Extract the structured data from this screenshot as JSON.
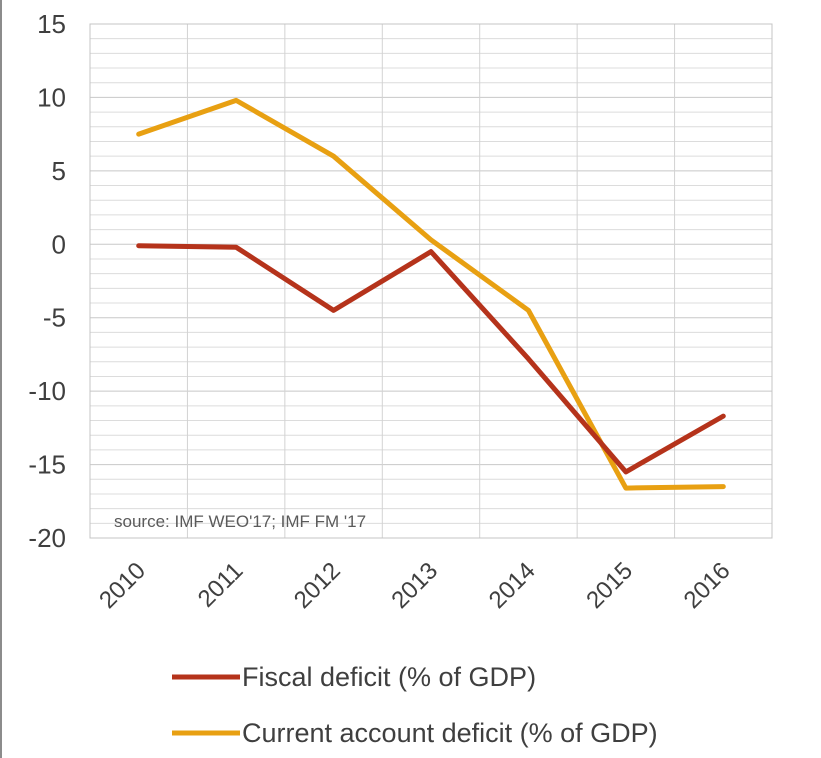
{
  "chart_data": {
    "type": "line",
    "x": [
      "2010",
      "2011",
      "2012",
      "2013",
      "2014",
      "2015",
      "2016"
    ],
    "series": [
      {
        "name": "Fiscal deficit (% of GDP)",
        "color": "#b5331b",
        "values": [
          -0.1,
          -0.2,
          -4.5,
          -0.5,
          -7.8,
          -15.5,
          -11.7
        ]
      },
      {
        "name": "Current account deficit (% of GDP)",
        "color": "#e8a012",
        "values": [
          7.5,
          9.8,
          6.0,
          0.3,
          -4.5,
          -16.6,
          -16.5
        ]
      }
    ],
    "ylim": [
      -20,
      15
    ],
    "yticks": [
      15,
      10,
      5,
      0,
      -5,
      -10,
      -15,
      -20
    ],
    "ytick_labels": [
      "15",
      "10",
      "5",
      "0",
      "-5",
      "-10",
      "-15",
      "-20"
    ],
    "grid": true,
    "legend_position": "bottom",
    "annotation": "source: IMF WEO'17; IMF FM '17"
  }
}
